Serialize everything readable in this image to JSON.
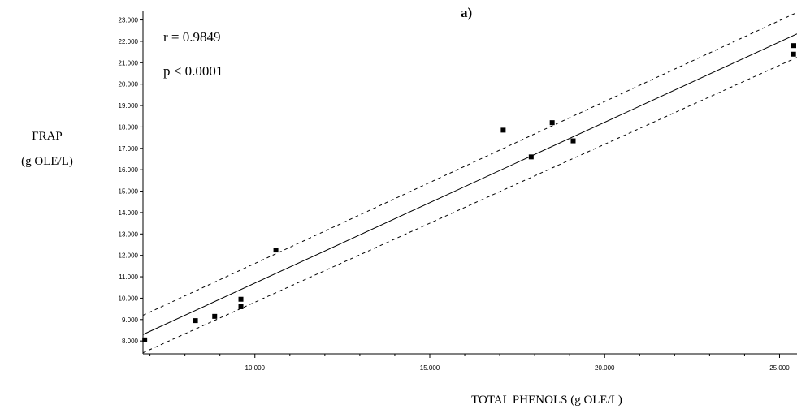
{
  "chart_data": {
    "type": "scatter",
    "title": "a)",
    "annotations": [
      "r = 0.9849",
      "p < 0.0001"
    ],
    "xlabel": "TOTAL PHENOLS (g OLE/L)",
    "ylabel_lines": [
      "FRAP",
      "(g OLE/L)"
    ],
    "xlim": [
      6.8,
      25.5
    ],
    "ylim": [
      7.4,
      23.4
    ],
    "x_ticks": [
      {
        "value": 10,
        "label": "10.000"
      },
      {
        "value": 15,
        "label": "15.000"
      },
      {
        "value": 20,
        "label": "20.000"
      },
      {
        "value": 25,
        "label": "25.000"
      }
    ],
    "y_ticks": [
      {
        "value": 8,
        "label": "8.000"
      },
      {
        "value": 9,
        "label": "9.000"
      },
      {
        "value": 10,
        "label": "10.000"
      },
      {
        "value": 11,
        "label": "11.000"
      },
      {
        "value": 12,
        "label": "12.000"
      },
      {
        "value": 13,
        "label": "13.000"
      },
      {
        "value": 14,
        "label": "14.000"
      },
      {
        "value": 15,
        "label": "15.000"
      },
      {
        "value": 16,
        "label": "16.000"
      },
      {
        "value": 17,
        "label": "17.000"
      },
      {
        "value": 18,
        "label": "18.000"
      },
      {
        "value": 19,
        "label": "19.000"
      },
      {
        "value": 20,
        "label": "20.000"
      },
      {
        "value": 21,
        "label": "21.000"
      },
      {
        "value": 22,
        "label": "22.000"
      },
      {
        "value": 23,
        "label": "23.000"
      }
    ],
    "points": [
      {
        "x": 6.85,
        "y": 8.05
      },
      {
        "x": 8.3,
        "y": 8.95
      },
      {
        "x": 8.85,
        "y": 9.15
      },
      {
        "x": 9.6,
        "y": 9.6
      },
      {
        "x": 9.6,
        "y": 9.95
      },
      {
        "x": 10.6,
        "y": 12.25
      },
      {
        "x": 17.1,
        "y": 17.85
      },
      {
        "x": 17.9,
        "y": 16.6
      },
      {
        "x": 18.5,
        "y": 18.2
      },
      {
        "x": 19.1,
        "y": 17.35
      },
      {
        "x": 25.4,
        "y": 21.4
      },
      {
        "x": 25.5,
        "y": 21.8
      }
    ],
    "regression_line": [
      {
        "x": 6.8,
        "y": 8.3
      },
      {
        "x": 25.5,
        "y": 22.35
      }
    ],
    "confidence_upper": [
      {
        "x": 6.8,
        "y": 9.2
      },
      {
        "x": 25.5,
        "y": 23.35
      }
    ],
    "confidence_lower": [
      {
        "x": 6.8,
        "y": 7.45
      },
      {
        "x": 25.5,
        "y": 21.25
      }
    ],
    "grid": false,
    "legend": "none"
  }
}
